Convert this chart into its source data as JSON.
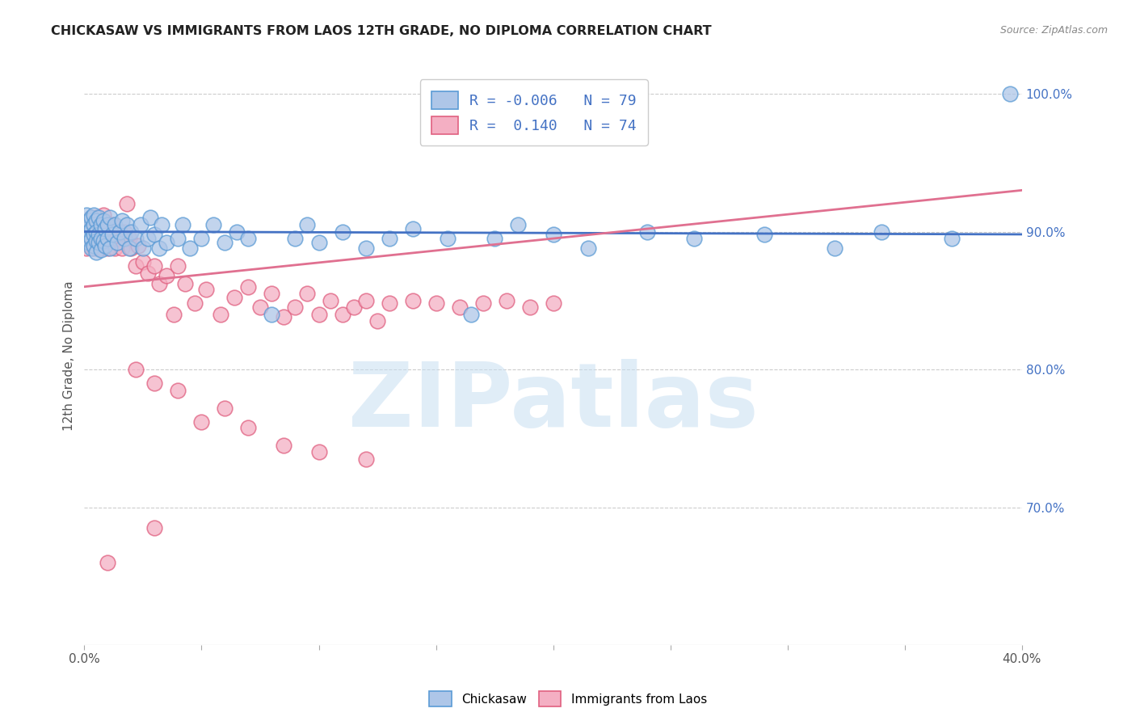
{
  "title": "CHICKASAW VS IMMIGRANTS FROM LAOS 12TH GRADE, NO DIPLOMA CORRELATION CHART",
  "source": "Source: ZipAtlas.com",
  "ylabel": "12th Grade, No Diploma",
  "watermark": "ZIPatlas",
  "x_min": 0.0,
  "x_max": 0.4,
  "y_min": 0.6,
  "y_max": 1.02,
  "chickasaw_color": "#aec6e8",
  "chickasaw_edge_color": "#5b9bd5",
  "laos_color": "#f4afc3",
  "laos_edge_color": "#e06080",
  "trend_blue": "#4472c4",
  "trend_pink": "#e07090",
  "background_color": "#ffffff",
  "grid_color": "#cccccc",
  "chickasaw_x": [
    0.001,
    0.001,
    0.001,
    0.002,
    0.002,
    0.002,
    0.003,
    0.003,
    0.003,
    0.003,
    0.004,
    0.004,
    0.004,
    0.004,
    0.005,
    0.005,
    0.005,
    0.005,
    0.006,
    0.006,
    0.006,
    0.007,
    0.007,
    0.007,
    0.008,
    0.008,
    0.009,
    0.009,
    0.01,
    0.01,
    0.011,
    0.011,
    0.012,
    0.013,
    0.014,
    0.015,
    0.016,
    0.017,
    0.018,
    0.019,
    0.02,
    0.022,
    0.024,
    0.025,
    0.027,
    0.028,
    0.03,
    0.032,
    0.033,
    0.035,
    0.04,
    0.042,
    0.045,
    0.05,
    0.055,
    0.06,
    0.065,
    0.07,
    0.08,
    0.09,
    0.095,
    0.1,
    0.11,
    0.12,
    0.13,
    0.14,
    0.155,
    0.165,
    0.175,
    0.185,
    0.2,
    0.215,
    0.24,
    0.26,
    0.29,
    0.32,
    0.34,
    0.37,
    0.395
  ],
  "chickasaw_y": [
    0.905,
    0.912,
    0.895,
    0.908,
    0.9,
    0.892,
    0.91,
    0.902,
    0.895,
    0.888,
    0.912,
    0.905,
    0.898,
    0.89,
    0.908,
    0.9,
    0.893,
    0.885,
    0.91,
    0.898,
    0.892,
    0.905,
    0.895,
    0.887,
    0.908,
    0.893,
    0.902,
    0.89,
    0.905,
    0.895,
    0.91,
    0.888,
    0.898,
    0.905,
    0.892,
    0.9,
    0.908,
    0.895,
    0.905,
    0.888,
    0.9,
    0.895,
    0.905,
    0.888,
    0.895,
    0.91,
    0.898,
    0.888,
    0.905,
    0.892,
    0.895,
    0.905,
    0.888,
    0.895,
    0.905,
    0.892,
    0.9,
    0.895,
    0.84,
    0.895,
    0.905,
    0.892,
    0.9,
    0.888,
    0.895,
    0.902,
    0.895,
    0.84,
    0.895,
    0.905,
    0.898,
    0.888,
    0.9,
    0.895,
    0.898,
    0.888,
    0.9,
    0.895,
    1.0
  ],
  "laos_x": [
    0.001,
    0.001,
    0.002,
    0.002,
    0.003,
    0.003,
    0.004,
    0.004,
    0.005,
    0.005,
    0.006,
    0.006,
    0.007,
    0.007,
    0.008,
    0.008,
    0.009,
    0.01,
    0.01,
    0.011,
    0.012,
    0.013,
    0.014,
    0.015,
    0.016,
    0.017,
    0.018,
    0.019,
    0.02,
    0.022,
    0.023,
    0.025,
    0.027,
    0.03,
    0.032,
    0.035,
    0.038,
    0.04,
    0.043,
    0.047,
    0.052,
    0.058,
    0.064,
    0.07,
    0.075,
    0.08,
    0.085,
    0.09,
    0.095,
    0.1,
    0.105,
    0.11,
    0.115,
    0.12,
    0.125,
    0.13,
    0.14,
    0.15,
    0.16,
    0.17,
    0.18,
    0.19,
    0.2,
    0.022,
    0.03,
    0.04,
    0.05,
    0.06,
    0.07,
    0.085,
    0.1,
    0.12,
    0.03,
    0.01
  ],
  "laos_y": [
    0.9,
    0.888,
    0.905,
    0.892,
    0.91,
    0.895,
    0.9,
    0.888,
    0.91,
    0.898,
    0.905,
    0.892,
    0.905,
    0.888,
    0.9,
    0.912,
    0.895,
    0.905,
    0.888,
    0.9,
    0.905,
    0.888,
    0.895,
    0.9,
    0.888,
    0.9,
    0.92,
    0.895,
    0.888,
    0.875,
    0.89,
    0.878,
    0.87,
    0.875,
    0.862,
    0.868,
    0.84,
    0.875,
    0.862,
    0.848,
    0.858,
    0.84,
    0.852,
    0.86,
    0.845,
    0.855,
    0.838,
    0.845,
    0.855,
    0.84,
    0.85,
    0.84,
    0.845,
    0.85,
    0.835,
    0.848,
    0.85,
    0.848,
    0.845,
    0.848,
    0.85,
    0.845,
    0.848,
    0.8,
    0.79,
    0.785,
    0.762,
    0.772,
    0.758,
    0.745,
    0.74,
    0.735,
    0.685,
    0.66
  ],
  "chick_trend_x": [
    0.0,
    0.4
  ],
  "chick_trend_y": [
    0.9,
    0.898
  ],
  "laos_trend_x": [
    0.0,
    0.4
  ],
  "laos_trend_y": [
    0.86,
    0.93
  ]
}
